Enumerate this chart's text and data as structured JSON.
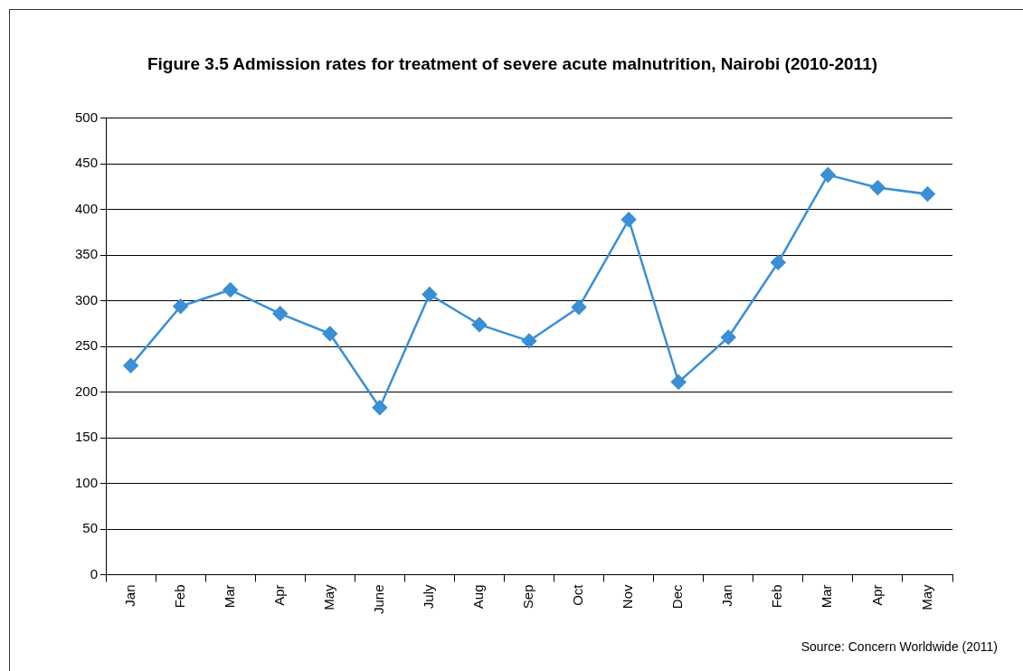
{
  "chart_data": {
    "type": "line",
    "title": "Figure 3.5 Admission rates for treatment of severe acute malnutrition, Nairobi (2010-2011)",
    "categories": [
      "Jan",
      "Feb",
      "Mar",
      "Apr",
      "May",
      "June",
      "July",
      "Aug",
      "Sep",
      "Oct",
      "Nov",
      "Dec",
      "Jan",
      "Feb",
      "Mar",
      "Apr",
      "May"
    ],
    "series": [
      {
        "color": "#3a8fd6",
        "values": [
          229,
          294,
          312,
          286,
          264,
          183,
          307,
          274,
          256,
          293,
          389,
          211,
          260,
          342,
          438,
          424,
          417
        ]
      }
    ],
    "ylim": [
      0,
      500
    ],
    "yticks": [
      0,
      50,
      100,
      150,
      200,
      250,
      300,
      350,
      400,
      450,
      500
    ],
    "grid": "y",
    "marker": "diamond",
    "line_style": "solid",
    "annotations": [
      "Source: Concern Worldwide (2011)"
    ]
  }
}
